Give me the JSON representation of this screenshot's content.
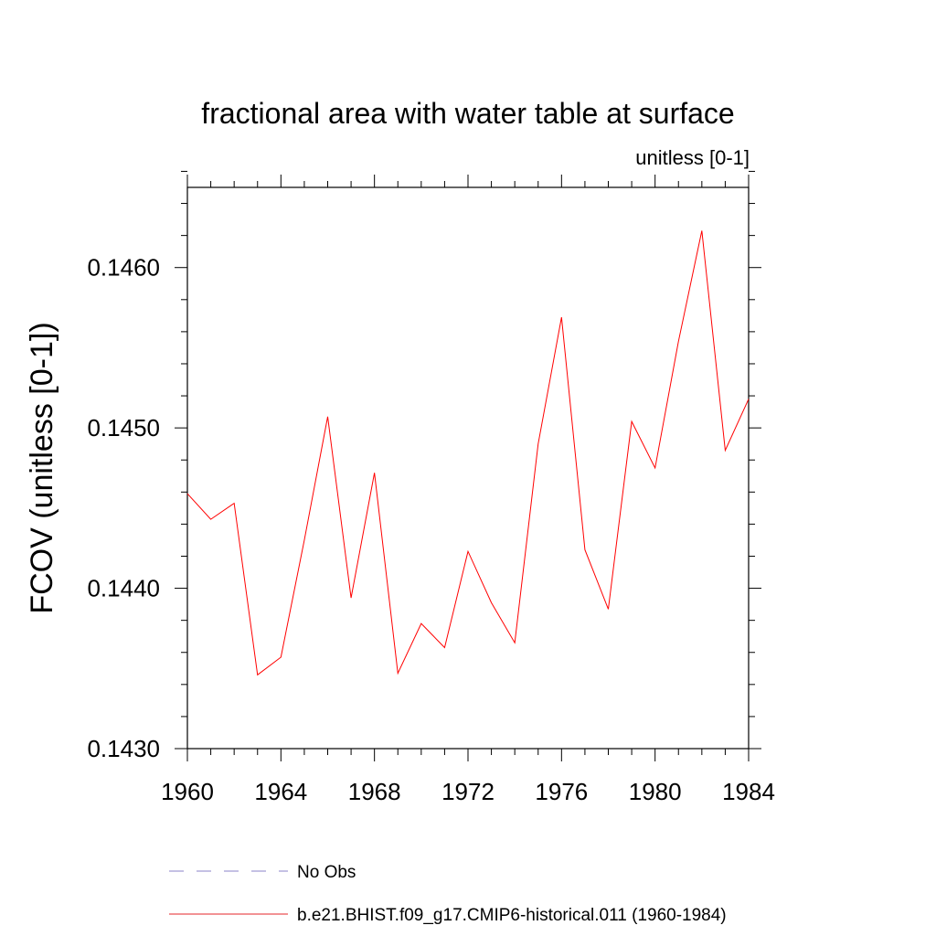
{
  "chart_data": {
    "type": "line",
    "title": "fractional area with water table at surface",
    "subtitle": "unitless [0-1]",
    "xlabel": "",
    "ylabel": "FCOV  (unitless [0-1])",
    "xlim": [
      1960,
      1984
    ],
    "ylim": [
      0.143,
      0.1465
    ],
    "x_ticks": [
      1960,
      1964,
      1968,
      1972,
      1976,
      1980,
      1984
    ],
    "y_ticks": [
      0.143,
      0.144,
      0.145,
      0.146
    ],
    "y_tick_labels": [
      "0.1430",
      "0.1440",
      "0.1450",
      "0.1460"
    ],
    "grid": false,
    "legend_position": "bottom",
    "legend": [
      {
        "label": "No Obs",
        "color": "#8b83c8",
        "style": "dashed"
      },
      {
        "label": "b.e21.BHIST.f09_g17.CMIP6-historical.011 (1960-1984)",
        "color": "#e4262a",
        "style": "solid"
      }
    ],
    "series": [
      {
        "name": "b.e21.BHIST.f09_g17.CMIP6-historical.011 (1960-1984)",
        "color": "#ff0000",
        "x": [
          1960,
          1961,
          1962,
          1963,
          1964,
          1965,
          1966,
          1967,
          1968,
          1969,
          1970,
          1971,
          1972,
          1973,
          1974,
          1975,
          1976,
          1977,
          1978,
          1979,
          1980,
          1981,
          1982,
          1983,
          1984
        ],
        "y": [
          0.14459,
          0.14443,
          0.14453,
          0.14346,
          0.14357,
          0.1443,
          0.14507,
          0.14394,
          0.14472,
          0.14347,
          0.14378,
          0.14363,
          0.14423,
          0.14391,
          0.14366,
          0.1449,
          0.14569,
          0.14424,
          0.14387,
          0.14504,
          0.14475,
          0.14554,
          0.14623,
          0.14486,
          0.14518
        ]
      }
    ]
  }
}
